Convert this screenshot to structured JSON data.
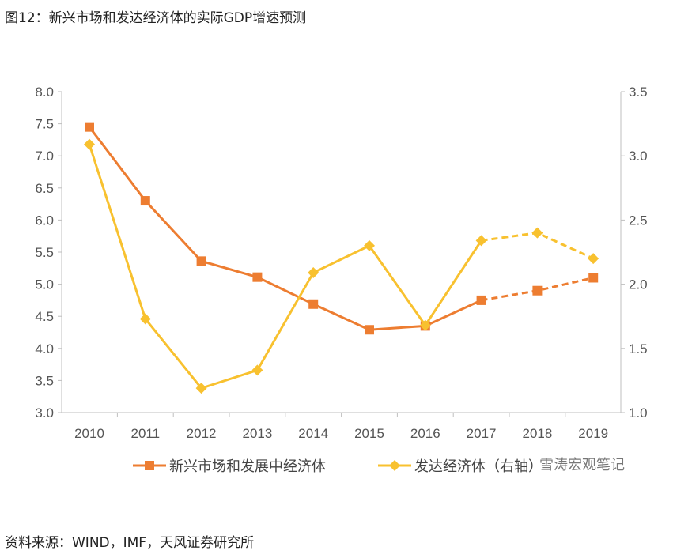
{
  "title": "图12：新兴市场和发达经济体的实际GDP增速预测",
  "source": "资料来源：WIND，IMF，天风证券研究所",
  "watermark": "雪涛宏观笔记",
  "chart_data": {
    "type": "line",
    "categories": [
      "2010",
      "2011",
      "2012",
      "2013",
      "2014",
      "2015",
      "2016",
      "2017",
      "2018",
      "2019"
    ],
    "y_left": {
      "range": [
        3.0,
        8.0
      ],
      "ticks": [
        "3.0",
        "3.5",
        "4.0",
        "4.5",
        "5.0",
        "5.5",
        "6.0",
        "6.5",
        "7.0",
        "7.5",
        "8.0"
      ]
    },
    "y_right": {
      "range": [
        1.0,
        3.5
      ],
      "ticks": [
        "1.0",
        "1.5",
        "2.0",
        "2.5",
        "3.0",
        "3.5"
      ]
    },
    "grid": false,
    "legend": "bottom",
    "forecast_from": "2017",
    "series": [
      {
        "name": "新兴市场和发展中经济体",
        "axis": "left",
        "color": "#ED7D31",
        "marker": "square",
        "values": [
          7.45,
          6.3,
          5.36,
          5.11,
          4.69,
          4.29,
          4.35,
          4.75,
          4.9,
          5.1
        ]
      },
      {
        "name": "发达经济体（右轴）",
        "axis": "right",
        "color": "#F8C12F",
        "marker": "diamond",
        "values": [
          3.09,
          1.73,
          1.19,
          1.33,
          2.09,
          2.3,
          1.68,
          2.34,
          2.4,
          2.2
        ]
      }
    ]
  }
}
